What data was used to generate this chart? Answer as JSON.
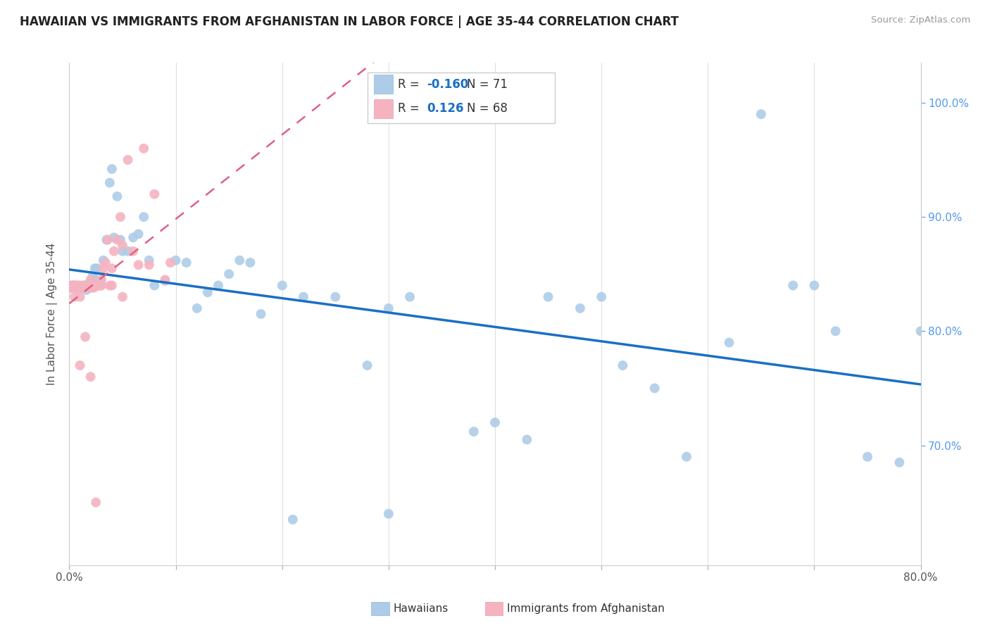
{
  "title": "HAWAIIAN VS IMMIGRANTS FROM AFGHANISTAN IN LABOR FORCE | AGE 35-44 CORRELATION CHART",
  "source": "Source: ZipAtlas.com",
  "ylabel": "In Labor Force | Age 35-44",
  "xlim": [
    0.0,
    0.8
  ],
  "ylim": [
    0.595,
    1.035
  ],
  "xticks": [
    0.0,
    0.1,
    0.2,
    0.3,
    0.4,
    0.5,
    0.6,
    0.7,
    0.8
  ],
  "xticklabels": [
    "0.0%",
    "",
    "",
    "",
    "",
    "",
    "",
    "",
    "80.0%"
  ],
  "yticks_right": [
    0.7,
    0.8,
    0.9,
    1.0
  ],
  "yticklabels_right": [
    "70.0%",
    "80.0%",
    "90.0%",
    "100.0%"
  ],
  "legend_r_blue": "-0.160",
  "legend_n_blue": "71",
  "legend_r_pink": "0.126",
  "legend_n_pink": "68",
  "blue_dot_color": "#aecce8",
  "pink_dot_color": "#f5b3c0",
  "trendline_blue_color": "#1a6fc4",
  "trendline_pink_color": "#e06080",
  "background_color": "#ffffff",
  "grid_color": "#e0e0e0",
  "hawaiians_x": [
    0.003,
    0.005,
    0.007,
    0.008,
    0.009,
    0.01,
    0.011,
    0.012,
    0.013,
    0.014,
    0.015,
    0.016,
    0.017,
    0.018,
    0.019,
    0.02,
    0.022,
    0.024,
    0.025,
    0.026,
    0.028,
    0.03,
    0.032,
    0.035,
    0.038,
    0.04,
    0.042,
    0.045,
    0.048,
    0.05,
    0.055,
    0.06,
    0.065,
    0.07,
    0.075,
    0.08,
    0.09,
    0.1,
    0.11,
    0.12,
    0.13,
    0.14,
    0.15,
    0.16,
    0.17,
    0.18,
    0.2,
    0.22,
    0.25,
    0.28,
    0.3,
    0.32,
    0.38,
    0.4,
    0.43,
    0.45,
    0.48,
    0.5,
    0.52,
    0.55,
    0.58,
    0.62,
    0.65,
    0.68,
    0.7,
    0.72,
    0.75,
    0.78,
    0.8,
    0.3,
    0.21
  ],
  "hawaiians_y": [
    0.838,
    0.838,
    0.838,
    0.838,
    0.838,
    0.838,
    0.838,
    0.838,
    0.838,
    0.838,
    0.838,
    0.836,
    0.838,
    0.838,
    0.84,
    0.842,
    0.848,
    0.855,
    0.845,
    0.855,
    0.84,
    0.845,
    0.862,
    0.88,
    0.93,
    0.942,
    0.882,
    0.918,
    0.88,
    0.87,
    0.87,
    0.882,
    0.885,
    0.9,
    0.862,
    0.84,
    0.844,
    0.862,
    0.86,
    0.82,
    0.834,
    0.84,
    0.85,
    0.862,
    0.86,
    0.815,
    0.84,
    0.83,
    0.83,
    0.77,
    0.82,
    0.83,
    0.712,
    0.72,
    0.705,
    0.83,
    0.82,
    0.83,
    0.77,
    0.75,
    0.69,
    0.79,
    0.99,
    0.84,
    0.84,
    0.8,
    0.69,
    0.685,
    0.8,
    0.64,
    0.635
  ],
  "afghanistan_x": [
    0.001,
    0.002,
    0.002,
    0.003,
    0.003,
    0.004,
    0.004,
    0.005,
    0.005,
    0.006,
    0.006,
    0.007,
    0.007,
    0.008,
    0.008,
    0.009,
    0.01,
    0.01,
    0.011,
    0.012,
    0.013,
    0.014,
    0.015,
    0.015,
    0.016,
    0.017,
    0.018,
    0.019,
    0.02,
    0.021,
    0.022,
    0.023,
    0.024,
    0.025,
    0.026,
    0.027,
    0.028,
    0.03,
    0.032,
    0.034,
    0.036,
    0.038,
    0.04,
    0.042,
    0.045,
    0.048,
    0.05,
    0.055,
    0.06,
    0.065,
    0.07,
    0.075,
    0.08,
    0.09,
    0.095,
    0.01,
    0.015,
    0.02,
    0.025,
    0.03,
    0.04,
    0.05,
    0.005,
    0.01,
    0.02,
    0.03,
    0.015,
    0.025
  ],
  "afghanistan_y": [
    0.838,
    0.838,
    0.84,
    0.838,
    0.84,
    0.838,
    0.84,
    0.838,
    0.84,
    0.838,
    0.84,
    0.838,
    0.84,
    0.838,
    0.84,
    0.838,
    0.838,
    0.84,
    0.838,
    0.84,
    0.838,
    0.84,
    0.838,
    0.84,
    0.84,
    0.838,
    0.84,
    0.838,
    0.84,
    0.838,
    0.84,
    0.838,
    0.84,
    0.84,
    0.84,
    0.84,
    0.84,
    0.84,
    0.855,
    0.86,
    0.88,
    0.84,
    0.855,
    0.87,
    0.88,
    0.9,
    0.875,
    0.95,
    0.87,
    0.858,
    0.96,
    0.858,
    0.92,
    0.845,
    0.86,
    0.77,
    0.795,
    0.76,
    0.65,
    0.84,
    0.84,
    0.83,
    0.83,
    0.83,
    0.845,
    0.845,
    0.84,
    0.84
  ]
}
